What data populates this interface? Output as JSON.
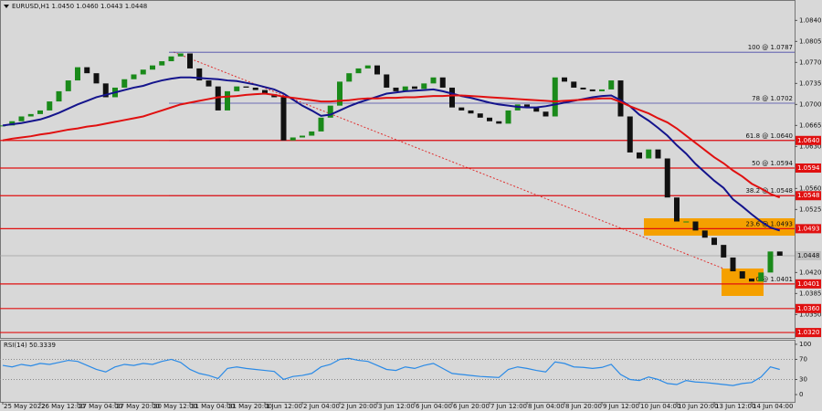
{
  "chart_data": [
    {
      "type": "candlestick",
      "title": "EURUSD,H1 1.0450 1.0460 1.0443 1.0448",
      "categories": [
        "25 May 2022",
        null,
        null,
        null,
        "26 May 12:00",
        null,
        null,
        null,
        "27 May 04:00",
        null,
        null,
        null,
        "27 May 20:00",
        null,
        null,
        null,
        "30 May 12:00",
        null,
        null,
        null,
        "31 May 04:00",
        null,
        null,
        null,
        "31 May 20:00",
        null,
        null,
        null,
        "1 Jun 12:00",
        null,
        null,
        null,
        "2 Jun 04:00",
        null,
        null,
        null,
        "2 Jun 20:00",
        null,
        null,
        null,
        "3 Jun 12:00",
        null,
        null,
        null,
        "6 Jun 04:00",
        null,
        null,
        null,
        "6 Jun 20:00",
        null,
        null,
        null,
        "7 Jun 12:00",
        null,
        null,
        null,
        "8 Jun 04:00",
        null,
        null,
        null,
        "8 Jun 20:00",
        null,
        null,
        null,
        "9 Jun 12:00",
        null,
        null,
        null,
        "10 Jun 04:00",
        null,
        null,
        null,
        "10 Jun 20:00",
        null,
        null,
        null,
        "13 Jun 12:00",
        null,
        null,
        null,
        "14 Jun 04:00",
        null,
        null,
        null
      ],
      "close": [
        1.0665,
        1.0672,
        1.068,
        1.0684,
        1.069,
        1.0705,
        1.0722,
        1.074,
        1.0762,
        1.0752,
        1.0735,
        1.0712,
        1.0728,
        1.0742,
        1.075,
        1.0758,
        1.0765,
        1.0772,
        1.078,
        1.0785,
        1.076,
        1.074,
        1.073,
        1.069,
        1.0722,
        1.073,
        1.0728,
        1.0724,
        1.0717,
        1.0712,
        1.064,
        1.0645,
        1.0648,
        1.0655,
        1.0678,
        1.0698,
        1.0738,
        1.0752,
        1.076,
        1.0765,
        1.075,
        1.0728,
        1.0722,
        1.073,
        1.0726,
        1.0735,
        1.0745,
        1.0728,
        1.0695,
        1.069,
        1.0685,
        1.0678,
        1.0672,
        1.0668,
        1.069,
        1.07,
        1.0695,
        1.0688,
        1.068,
        1.0745,
        1.0738,
        1.0728,
        1.0725,
        1.0722,
        1.0725,
        1.074,
        1.068,
        1.062,
        1.061,
        1.0625,
        1.061,
        1.0545,
        1.0505,
        1.0505,
        1.049,
        1.0478,
        1.0466,
        1.0445,
        1.0422,
        1.041,
        1.0405,
        1.042,
        1.0455,
        1.0448
      ],
      "up_color": "#1a8a1a",
      "down_color": "#111111",
      "series": [
        {
          "color": "#14148c",
          "values": [
            1.0665,
            1.0667,
            1.0669,
            1.0672,
            1.0675,
            1.068,
            1.0686,
            1.0693,
            1.07,
            1.0706,
            1.0712,
            1.0716,
            1.072,
            1.0724,
            1.0728,
            1.0731,
            1.0736,
            1.074,
            1.0743,
            1.0745,
            1.0745,
            1.0744,
            1.0743,
            1.0742,
            1.074,
            1.0739,
            1.0736,
            1.0733,
            1.0729,
            1.0725,
            1.0718,
            1.0708,
            1.0698,
            1.069,
            1.0681,
            1.0683,
            1.069,
            1.0697,
            1.0703,
            1.0708,
            1.0713,
            1.0718,
            1.072,
            1.0722,
            1.0723,
            1.0724,
            1.0725,
            1.0722,
            1.0718,
            1.0714,
            1.0711,
            1.0707,
            1.0703,
            1.07,
            1.0698,
            1.0696,
            1.0695,
            1.0695,
            1.0697,
            1.07,
            1.0703,
            1.0706,
            1.0709,
            1.0712,
            1.0714,
            1.0715,
            1.0707,
            1.0697,
            1.0683,
            1.0673,
            1.0661,
            1.0648,
            1.0632,
            1.0618,
            1.0601,
            1.0587,
            1.0573,
            1.0561,
            1.0542,
            1.053,
            1.0517,
            1.0505,
            1.0495,
            1.049
          ]
        },
        {
          "color": "#e01010",
          "values": [
            1.064,
            1.0643,
            1.0645,
            1.0647,
            1.065,
            1.0652,
            1.0655,
            1.0658,
            1.066,
            1.0663,
            1.0665,
            1.0668,
            1.0671,
            1.0674,
            1.0677,
            1.068,
            1.0685,
            1.069,
            1.0695,
            1.07,
            1.0703,
            1.0706,
            1.0709,
            1.0712,
            1.0713,
            1.0714,
            1.0716,
            1.0717,
            1.0718,
            1.0716,
            1.0713,
            1.0711,
            1.0709,
            1.0707,
            1.0705,
            1.0705,
            1.0706,
            1.0707,
            1.0709,
            1.071,
            1.071,
            1.0711,
            1.0711,
            1.0712,
            1.0712,
            1.0713,
            1.0714,
            1.0714,
            1.0715,
            1.0715,
            1.0714,
            1.0713,
            1.0712,
            1.0711,
            1.071,
            1.0709,
            1.0708,
            1.0707,
            1.0706,
            1.0705,
            1.0706,
            1.0707,
            1.0708,
            1.0709,
            1.071,
            1.071,
            1.0704,
            1.0697,
            1.0691,
            1.0685,
            1.0677,
            1.067,
            1.066,
            1.0648,
            1.0636,
            1.0624,
            1.0612,
            1.0602,
            1.059,
            1.058,
            1.0568,
            1.056,
            1.0551,
            1.0545
          ]
        }
      ],
      "ylim": [
        1.0311,
        1.0874
      ],
      "yticks": [
        {
          "value": 1.084,
          "label": "1.0840"
        },
        {
          "value": 1.0805,
          "label": "1.0805"
        },
        {
          "value": 1.077,
          "label": "1.0770"
        },
        {
          "value": 1.0735,
          "label": "1.0735"
        },
        {
          "value": 1.07,
          "label": "1.0700"
        },
        {
          "value": 1.0665,
          "label": "1.0665"
        },
        {
          "value": 1.063,
          "label": "1.0630"
        },
        {
          "value": 1.056,
          "label": "1.0560"
        },
        {
          "value": 1.0525,
          "label": "1.0525"
        },
        {
          "value": 1.042,
          "label": "1.0420"
        },
        {
          "value": 1.0385,
          "label": "1.0385"
        },
        {
          "value": 1.035,
          "label": "1.0350"
        }
      ],
      "levels": [
        {
          "value": 1.064,
          "label": "1.0640"
        },
        {
          "value": 1.0594,
          "label": "1.0594"
        },
        {
          "value": 1.0548,
          "label": "1.0548"
        },
        {
          "value": 1.0493,
          "label": "1.0493"
        },
        {
          "value": 1.0401,
          "label": "1.0401"
        },
        {
          "value": 1.036,
          "label": "1.0360"
        },
        {
          "value": 1.032,
          "label": "1.0320"
        }
      ],
      "level_color": "#e01010",
      "fib": [
        {
          "value": 1.0787,
          "label": "100 @ 1.0787"
        },
        {
          "value": 1.0702,
          "label": "78 @ 1.0702"
        },
        {
          "value": 1.064,
          "label": "61.8 @ 1.0640"
        },
        {
          "value": 1.0594,
          "label": "50 @ 1.0594"
        },
        {
          "value": 1.0548,
          "label": "38.2 @ 1.0548"
        },
        {
          "value": 1.0493,
          "label": "23.6 @ 1.0493"
        },
        {
          "value": 1.0401,
          "label": "0 @ 1.0401"
        }
      ],
      "current": {
        "value": 1.0448,
        "label": "1.0448"
      }
    },
    {
      "type": "line",
      "title": "RSI(14) 50.3339",
      "color": "#2a8ae6",
      "values": [
        58,
        55,
        60,
        57,
        62,
        60,
        64,
        68,
        66,
        58,
        50,
        45,
        55,
        60,
        58,
        62,
        60,
        66,
        70,
        64,
        50,
        42,
        38,
        32,
        52,
        55,
        52,
        50,
        48,
        46,
        30,
        36,
        38,
        42,
        55,
        60,
        70,
        72,
        68,
        66,
        58,
        50,
        48,
        55,
        52,
        58,
        62,
        52,
        42,
        40,
        38,
        36,
        35,
        34,
        50,
        55,
        52,
        48,
        45,
        65,
        62,
        55,
        54,
        52,
        54,
        60,
        40,
        30,
        28,
        35,
        30,
        22,
        20,
        28,
        25,
        24,
        22,
        20,
        18,
        22,
        24,
        35,
        55,
        50
      ],
      "ylim": [
        -14.5,
        109
      ],
      "yticks": [
        100,
        70,
        30,
        0
      ],
      "grid_ticks": [
        70,
        30
      ]
    }
  ]
}
